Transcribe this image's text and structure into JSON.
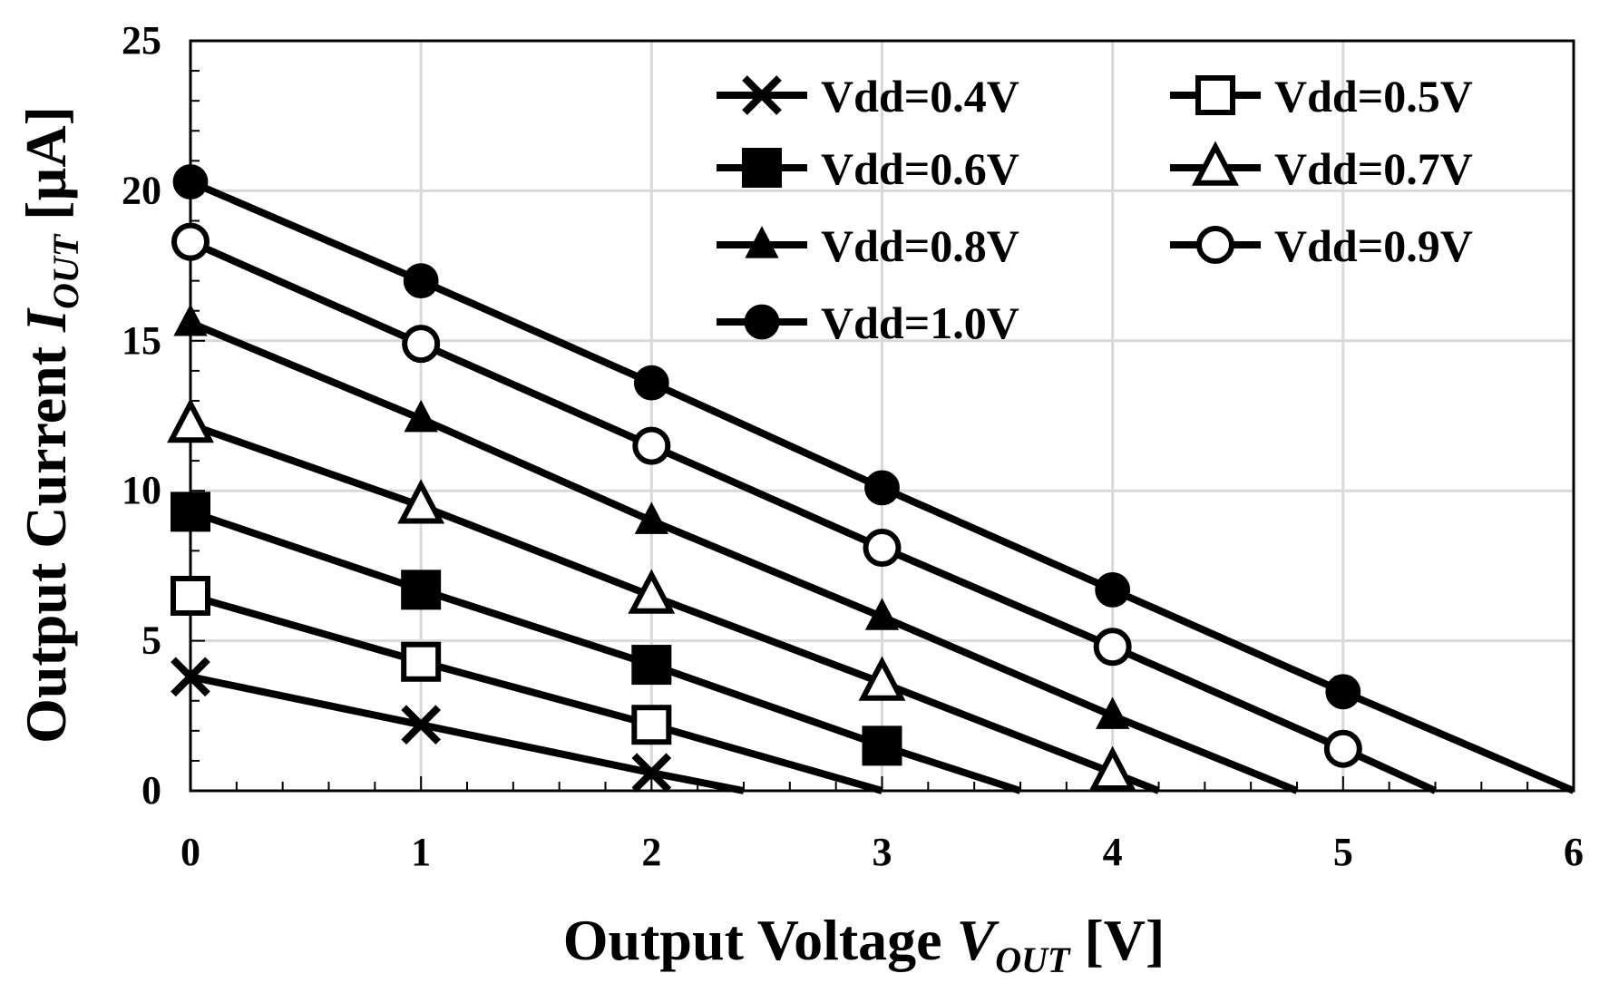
{
  "chart_data": {
    "type": "line",
    "title": "",
    "xlabel": {
      "main": "Output  Voltage ",
      "var": "V",
      "sub": "OUT",
      "unit": " [V]"
    },
    "ylabel": {
      "main": "Output  Current ",
      "var": "I",
      "sub": "OUT",
      "unit": " [µA]"
    },
    "xlim": [
      0,
      6
    ],
    "ylim": [
      0,
      25
    ],
    "xticks": [
      0,
      1,
      2,
      3,
      4,
      5,
      6
    ],
    "yticks": [
      0,
      5,
      10,
      15,
      20,
      25
    ],
    "xtick_labels": [
      "0",
      "1",
      "2",
      "3",
      "4",
      "5",
      "6"
    ],
    "ytick_labels": [
      "0",
      "5",
      "10",
      "15",
      "20",
      "25"
    ],
    "grid": true,
    "legend_position": "top-right",
    "series": [
      {
        "name": "Vdd=0.4V",
        "marker": "x",
        "x": [
          0,
          1,
          2,
          2.4
        ],
        "y": [
          3.8,
          2.2,
          0.6,
          0
        ],
        "marker_x": [
          0,
          1,
          2
        ],
        "marker_y": [
          3.8,
          2.2,
          0.6
        ]
      },
      {
        "name": "Vdd=0.5V",
        "marker": "square-open",
        "x": [
          0,
          1,
          2,
          3
        ],
        "y": [
          6.5,
          4.3,
          2.2,
          0
        ],
        "marker_x": [
          0,
          1,
          2
        ],
        "marker_y": [
          6.5,
          4.3,
          2.2
        ]
      },
      {
        "name": "Vdd=0.6V",
        "marker": "square-filled",
        "x": [
          0,
          1,
          2,
          3,
          3.6
        ],
        "y": [
          9.3,
          6.7,
          4.2,
          1.5,
          0
        ],
        "marker_x": [
          0,
          1,
          2,
          3
        ],
        "marker_y": [
          9.3,
          6.7,
          4.2,
          1.5
        ]
      },
      {
        "name": "Vdd=0.7V",
        "marker": "triangle-open",
        "x": [
          0,
          1,
          2,
          3,
          4,
          4.2
        ],
        "y": [
          12.2,
          9.5,
          6.5,
          3.6,
          0.6,
          0
        ],
        "marker_x": [
          0,
          1,
          2,
          3,
          4
        ],
        "marker_y": [
          12.2,
          9.5,
          6.5,
          3.6,
          0.6
        ]
      },
      {
        "name": "Vdd=0.8V",
        "marker": "triangle-filled",
        "x": [
          0,
          1,
          2,
          3,
          4,
          4.8
        ],
        "y": [
          15.6,
          12.4,
          9.0,
          5.8,
          2.5,
          0
        ],
        "marker_x": [
          0,
          1,
          2,
          3,
          4
        ],
        "marker_y": [
          15.6,
          12.4,
          9.0,
          5.8,
          2.5
        ]
      },
      {
        "name": "Vdd=0.9V",
        "marker": "circle-open",
        "x": [
          0,
          1,
          2,
          3,
          4,
          5,
          5.4
        ],
        "y": [
          18.3,
          14.9,
          11.5,
          8.1,
          4.8,
          1.4,
          0
        ],
        "marker_x": [
          0,
          1,
          2,
          3,
          4,
          5
        ],
        "marker_y": [
          18.3,
          14.9,
          11.5,
          8.1,
          4.8,
          1.4
        ]
      },
      {
        "name": "Vdd=1.0V",
        "marker": "circle-filled",
        "x": [
          0,
          1,
          2,
          3,
          4,
          5,
          6
        ],
        "y": [
          20.3,
          17.0,
          13.6,
          10.1,
          6.7,
          3.3,
          0
        ],
        "marker_x": [
          0,
          1,
          2,
          3,
          4,
          5
        ],
        "marker_y": [
          20.3,
          17.0,
          13.6,
          10.1,
          6.7,
          3.3
        ]
      }
    ]
  },
  "colors": {
    "line": "#000000",
    "grid": "#d9d9d9",
    "background": "#ffffff"
  }
}
